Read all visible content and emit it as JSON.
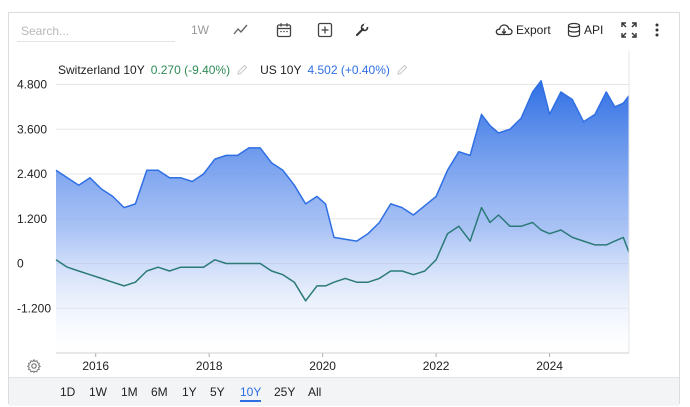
{
  "toolbar": {
    "search_placeholder": "Search...",
    "interval_label": "1W",
    "export_label": "Export",
    "api_label": "API"
  },
  "legend": [
    {
      "name": "Switzerland 10Y",
      "value": "0.270 (-9.40%)",
      "color": "#2e8b57"
    },
    {
      "name": "US 10Y",
      "value": "4.502 (+0.40%)",
      "color": "#2f6fe4"
    }
  ],
  "timeframes": [
    "1D",
    "1W",
    "1M",
    "6M",
    "1Y",
    "5Y",
    "10Y",
    "25Y",
    "All"
  ],
  "active_timeframe": "10Y",
  "chart_data": {
    "type": "area",
    "x_ticks": [
      "2016",
      "2018",
      "2020",
      "2022",
      "2024"
    ],
    "y_ticks": [
      "4.800",
      "3.600",
      "2.400",
      "1.200",
      "0",
      "-1.200"
    ],
    "ylim": [
      -2.4,
      5.7
    ],
    "xlim": [
      2015.3,
      2025.4
    ],
    "grid": true,
    "series": [
      {
        "name": "US 10Y",
        "color": "#2f6fe4",
        "x": [
          2015.3,
          2015.5,
          2015.7,
          2015.9,
          2016.1,
          2016.3,
          2016.5,
          2016.7,
          2016.9,
          2017.1,
          2017.3,
          2017.5,
          2017.7,
          2017.9,
          2018.1,
          2018.3,
          2018.5,
          2018.7,
          2018.9,
          2019.1,
          2019.3,
          2019.5,
          2019.7,
          2019.9,
          2020.05,
          2020.2,
          2020.4,
          2020.6,
          2020.8,
          2021.0,
          2021.2,
          2021.4,
          2021.6,
          2021.8,
          2022.0,
          2022.2,
          2022.4,
          2022.6,
          2022.8,
          2022.95,
          2023.1,
          2023.3,
          2023.5,
          2023.7,
          2023.85,
          2024.0,
          2024.2,
          2024.4,
          2024.6,
          2024.8,
          2025.0,
          2025.15,
          2025.3,
          2025.4
        ],
        "values": [
          2.5,
          2.3,
          2.1,
          2.3,
          2.0,
          1.8,
          1.5,
          1.6,
          2.5,
          2.5,
          2.3,
          2.3,
          2.2,
          2.4,
          2.8,
          2.9,
          2.9,
          3.1,
          3.1,
          2.7,
          2.5,
          2.1,
          1.6,
          1.8,
          1.6,
          0.7,
          0.65,
          0.6,
          0.8,
          1.1,
          1.6,
          1.5,
          1.3,
          1.55,
          1.8,
          2.5,
          3.0,
          2.9,
          4.0,
          3.7,
          3.5,
          3.6,
          3.9,
          4.6,
          4.9,
          4.0,
          4.6,
          4.4,
          3.8,
          4.0,
          4.6,
          4.2,
          4.3,
          4.5
        ]
      },
      {
        "name": "Switzerland 10Y",
        "color": "#2e8b57",
        "x": [
          2015.3,
          2015.5,
          2015.7,
          2015.9,
          2016.1,
          2016.3,
          2016.5,
          2016.7,
          2016.9,
          2017.1,
          2017.3,
          2017.5,
          2017.7,
          2017.9,
          2018.1,
          2018.3,
          2018.5,
          2018.7,
          2018.9,
          2019.1,
          2019.3,
          2019.5,
          2019.7,
          2019.9,
          2020.05,
          2020.2,
          2020.4,
          2020.6,
          2020.8,
          2021.0,
          2021.2,
          2021.4,
          2021.6,
          2021.8,
          2022.0,
          2022.2,
          2022.4,
          2022.6,
          2022.8,
          2022.95,
          2023.1,
          2023.3,
          2023.5,
          2023.7,
          2023.85,
          2024.0,
          2024.2,
          2024.4,
          2024.6,
          2024.8,
          2025.0,
          2025.15,
          2025.3,
          2025.4
        ],
        "values": [
          0.1,
          -0.1,
          -0.2,
          -0.3,
          -0.4,
          -0.5,
          -0.6,
          -0.5,
          -0.2,
          -0.1,
          -0.2,
          -0.1,
          -0.1,
          -0.1,
          0.1,
          0.0,
          0.0,
          0.0,
          0.0,
          -0.2,
          -0.3,
          -0.5,
          -1.0,
          -0.6,
          -0.6,
          -0.5,
          -0.4,
          -0.5,
          -0.5,
          -0.4,
          -0.2,
          -0.2,
          -0.3,
          -0.2,
          0.1,
          0.8,
          1.0,
          0.6,
          1.5,
          1.1,
          1.3,
          1.0,
          1.0,
          1.1,
          0.9,
          0.8,
          0.9,
          0.7,
          0.6,
          0.5,
          0.5,
          0.6,
          0.7,
          0.3
        ]
      }
    ]
  }
}
